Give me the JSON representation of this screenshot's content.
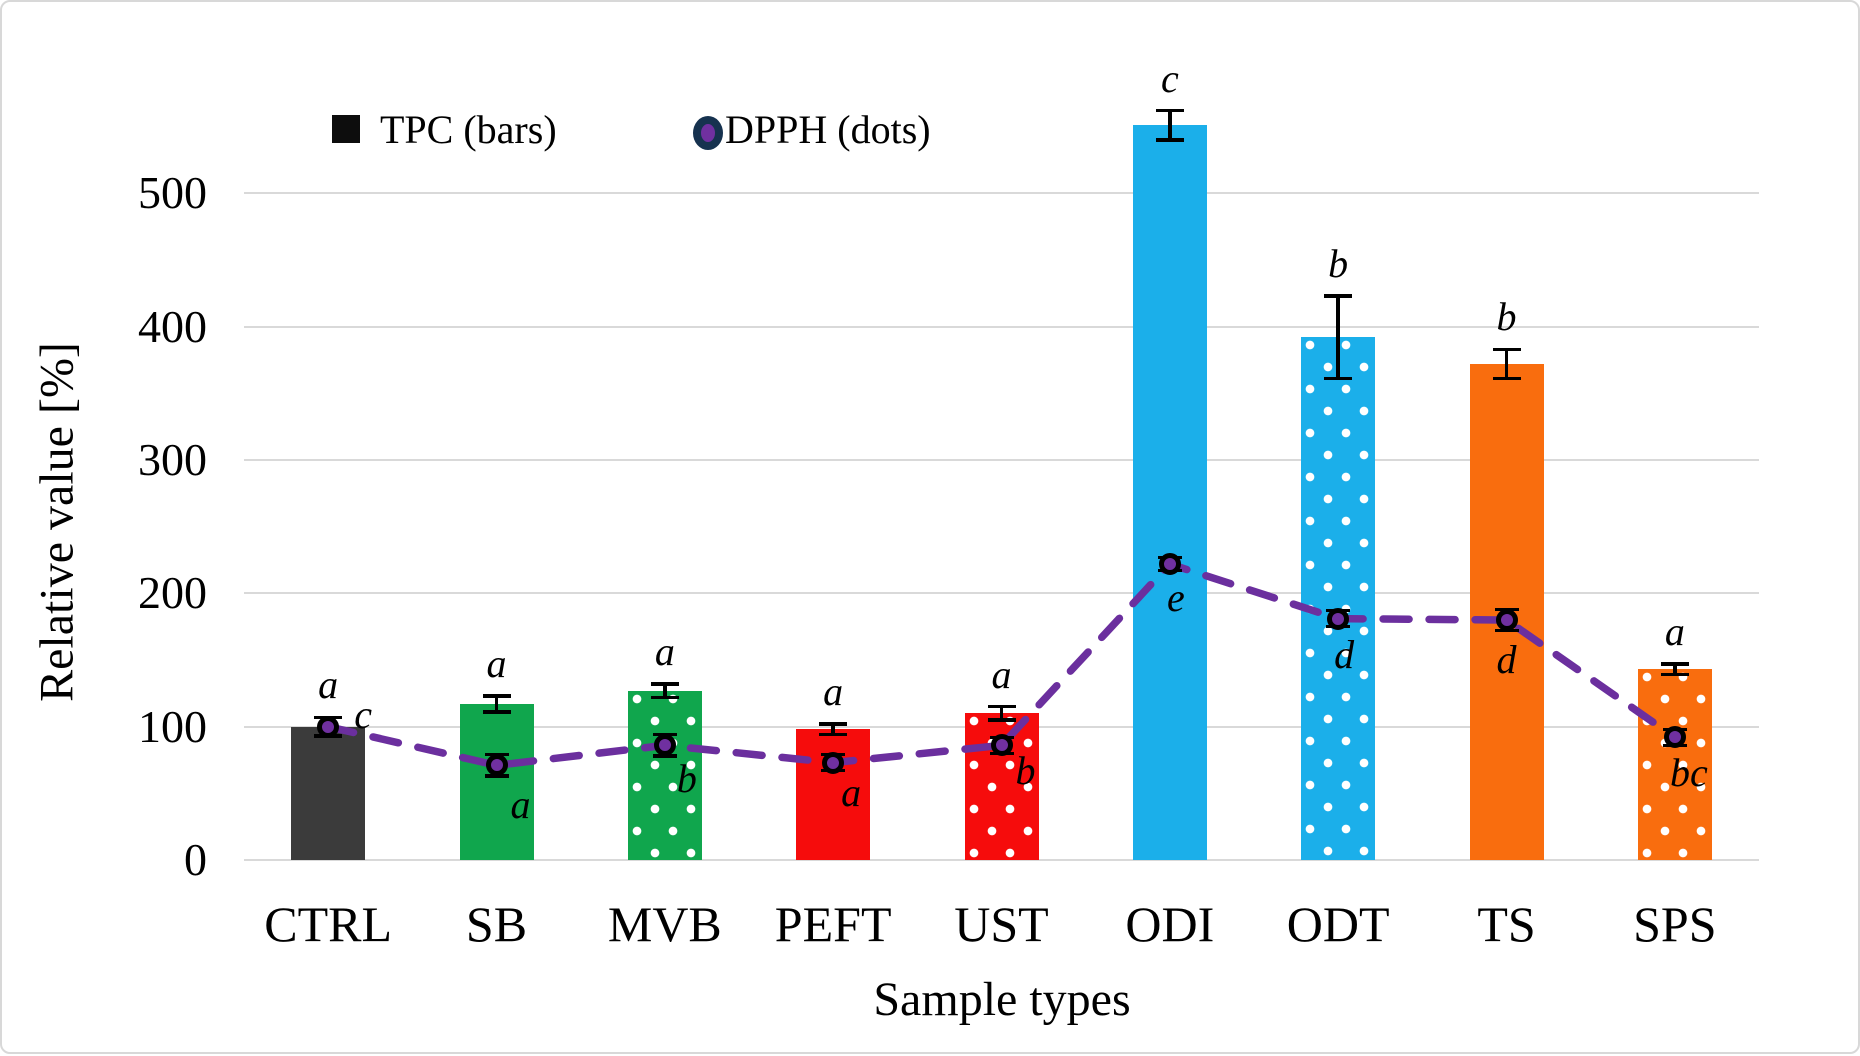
{
  "legend": {
    "tpc_label": "TPC (bars)",
    "dpph_label": "DPPH (dots)"
  },
  "axes": {
    "ylabel": "Relative value [%]",
    "xlabel": "Sample types"
  },
  "chart_data": {
    "type": "bar",
    "title": "",
    "categories": [
      "CTRL",
      "SB",
      "MVB",
      "PEFT",
      "UST",
      "ODI",
      "ODT",
      "TS",
      "SPS"
    ],
    "xlabel": "Sample types",
    "ylabel": "Relative value [%]",
    "ylim": [
      0,
      560
    ],
    "yticks": [
      0,
      100,
      200,
      300,
      400,
      500
    ],
    "grid": "horizontal",
    "legend_position": "top-center",
    "series": [
      {
        "name": "TPC (bars)",
        "type": "bar",
        "values": [
          100,
          117,
          127,
          98,
          110,
          551,
          392,
          372,
          143
        ],
        "errors": [
          7,
          6,
          5,
          4,
          5,
          11,
          31,
          11,
          4
        ],
        "sig_letters": [
          "a",
          "a",
          "a",
          "a",
          "a",
          "c",
          "b",
          "b",
          "a"
        ],
        "bar_fills": [
          "#3B3B3B",
          "#10A64D",
          "#10A64D",
          "#F60C0C",
          "#F60C0C",
          "#1BAFEA",
          "#1BAFEA",
          "#F96D0E",
          "#F96D0E"
        ],
        "bar_patterns": [
          "solid",
          "solid",
          "dotted",
          "solid",
          "dotted",
          "solid",
          "dotted",
          "solid",
          "dotted"
        ]
      },
      {
        "name": "DPPH (dots)",
        "type": "line-dots",
        "values": [
          100,
          71,
          86,
          73,
          86,
          222,
          181,
          180,
          92
        ],
        "errors": [
          7,
          8,
          8,
          6,
          6,
          5,
          6,
          8,
          6
        ],
        "sig_letters": [
          "c",
          "a",
          "b",
          "a",
          "b",
          "e",
          "d",
          "d",
          "bc"
        ],
        "line_style": "dashed",
        "line_color": "#6B2F9E",
        "dot_fill": "#7030A0",
        "dot_ring": "#16324F"
      }
    ],
    "colors": {
      "grid": "#D9D9D9",
      "error_bar": "#000000",
      "frame_border": "#D8D8D8"
    }
  }
}
